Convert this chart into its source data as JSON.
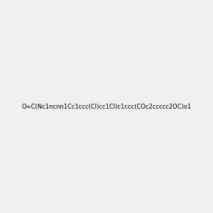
{
  "smiles": "O=C(Nc1ncnn1Cc1ccc(Cl)cc1Cl)c1ccc(COc2ccccc2OC)o1",
  "title": "",
  "background_color": "#f0f0f0",
  "figsize": [
    3.0,
    3.0
  ],
  "dpi": 100
}
